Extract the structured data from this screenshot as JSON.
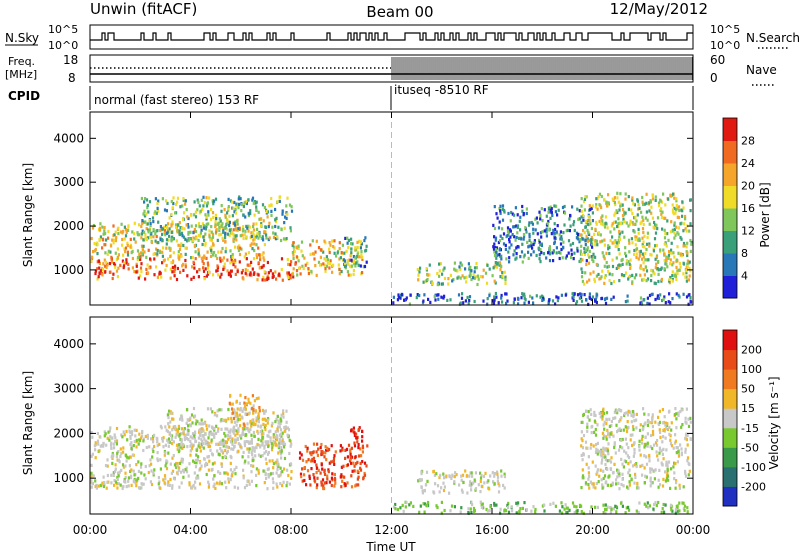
{
  "header": {
    "station": "Unwin (fitACF)",
    "beam": "Beam 00",
    "date": "12/May/2012"
  },
  "summary": {
    "nsky_label": "N.Sky",
    "nsearch_label": "N.Search",
    "freq_label_1": "Freq.",
    "freq_label_2": "[MHz]",
    "nave_label": "Nave",
    "cpid_label": "CPID",
    "count_top_tick": "10^5",
    "count_bottom_tick": "10^0",
    "freq_ticks": [
      "18",
      "8"
    ],
    "nave_ticks": [
      "60",
      "0"
    ],
    "cpid_segments": [
      "normal (fast stereo) 153 RF",
      "ituseq -8510 RF"
    ]
  },
  "chart_data": [
    {
      "type": "heatmap",
      "name": "power",
      "ylabel": "Slant Range [km]",
      "ylim": [
        200,
        4600
      ],
      "yticks": [
        1000,
        2000,
        3000,
        4000
      ],
      "xlim": [
        0,
        24
      ],
      "colorbar": {
        "label": "Power [dB]",
        "ticks": [
          "28",
          "24",
          "20",
          "16",
          "12",
          "8",
          "4"
        ],
        "colors": [
          "#2020d8",
          "#2878b8",
          "#3aa07a",
          "#7fc75a",
          "#f0dc28",
          "#f4a52a",
          "#f06a22",
          "#e01a10"
        ]
      },
      "regions": [
        {
          "t": [
            0.0,
            8.2
          ],
          "r": [
            800,
            1300
          ],
          "level": 0.85
        },
        {
          "t": [
            0.0,
            7.0
          ],
          "r": [
            1300,
            2100
          ],
          "level": 0.55
        },
        {
          "t": [
            2.0,
            8.0
          ],
          "r": [
            1700,
            2700
          ],
          "level": 0.4
        },
        {
          "t": [
            8.0,
            10.8
          ],
          "r": [
            900,
            1700
          ],
          "level": 0.6
        },
        {
          "t": [
            10.0,
            11.0
          ],
          "r": [
            1100,
            1800
          ],
          "level": 0.3
        },
        {
          "t": [
            13.0,
            16.5
          ],
          "r": [
            700,
            1200
          ],
          "level": 0.45
        },
        {
          "t": [
            16.0,
            20.0
          ],
          "r": [
            1200,
            2500
          ],
          "level": 0.2
        },
        {
          "t": [
            19.5,
            23.9
          ],
          "r": [
            700,
            2800
          ],
          "level": 0.5
        },
        {
          "t": [
            12.0,
            23.9
          ],
          "r": [
            250,
            500
          ],
          "level": 0.1
        }
      ]
    },
    {
      "type": "heatmap",
      "name": "velocity",
      "ylabel": "Slant Range [km]",
      "ylim": [
        200,
        4600
      ],
      "yticks": [
        1000,
        2000,
        3000,
        4000
      ],
      "xlabel": "Time UT",
      "xticks": [
        "00:00",
        "04:00",
        "08:00",
        "12:00",
        "16:00",
        "20:00",
        "00:00"
      ],
      "xlim": [
        0,
        24
      ],
      "colorbar": {
        "label": "Velocity [m s⁻¹]",
        "ticks": [
          "200",
          "100",
          "50",
          "15",
          "-15",
          "-50",
          "-100",
          "-200"
        ],
        "colors": [
          "#2030c0",
          "#2a7070",
          "#3a9a4a",
          "#78c830",
          "#c8c8c8",
          "#f0b828",
          "#f07a20",
          "#e84a18",
          "#e01010"
        ]
      },
      "regions": [
        {
          "t": [
            0.0,
            8.0
          ],
          "r": [
            800,
            2200
          ],
          "v": "grey"
        },
        {
          "t": [
            3.0,
            7.8
          ],
          "r": [
            1700,
            2600
          ],
          "v": "grey"
        },
        {
          "t": [
            5.5,
            7.0
          ],
          "r": [
            2200,
            2900
          ],
          "v": "orange"
        },
        {
          "t": [
            8.3,
            11.0
          ],
          "r": [
            800,
            1800
          ],
          "v": "red"
        },
        {
          "t": [
            10.2,
            10.8
          ],
          "r": [
            1500,
            2200
          ],
          "v": "darkred"
        },
        {
          "t": [
            13.0,
            16.5
          ],
          "r": [
            700,
            1200
          ],
          "v": "grey"
        },
        {
          "t": [
            19.5,
            23.9
          ],
          "r": [
            800,
            2600
          ],
          "v": "grey"
        },
        {
          "t": [
            12.0,
            23.9
          ],
          "r": [
            250,
            500
          ],
          "v": "green"
        }
      ]
    }
  ]
}
